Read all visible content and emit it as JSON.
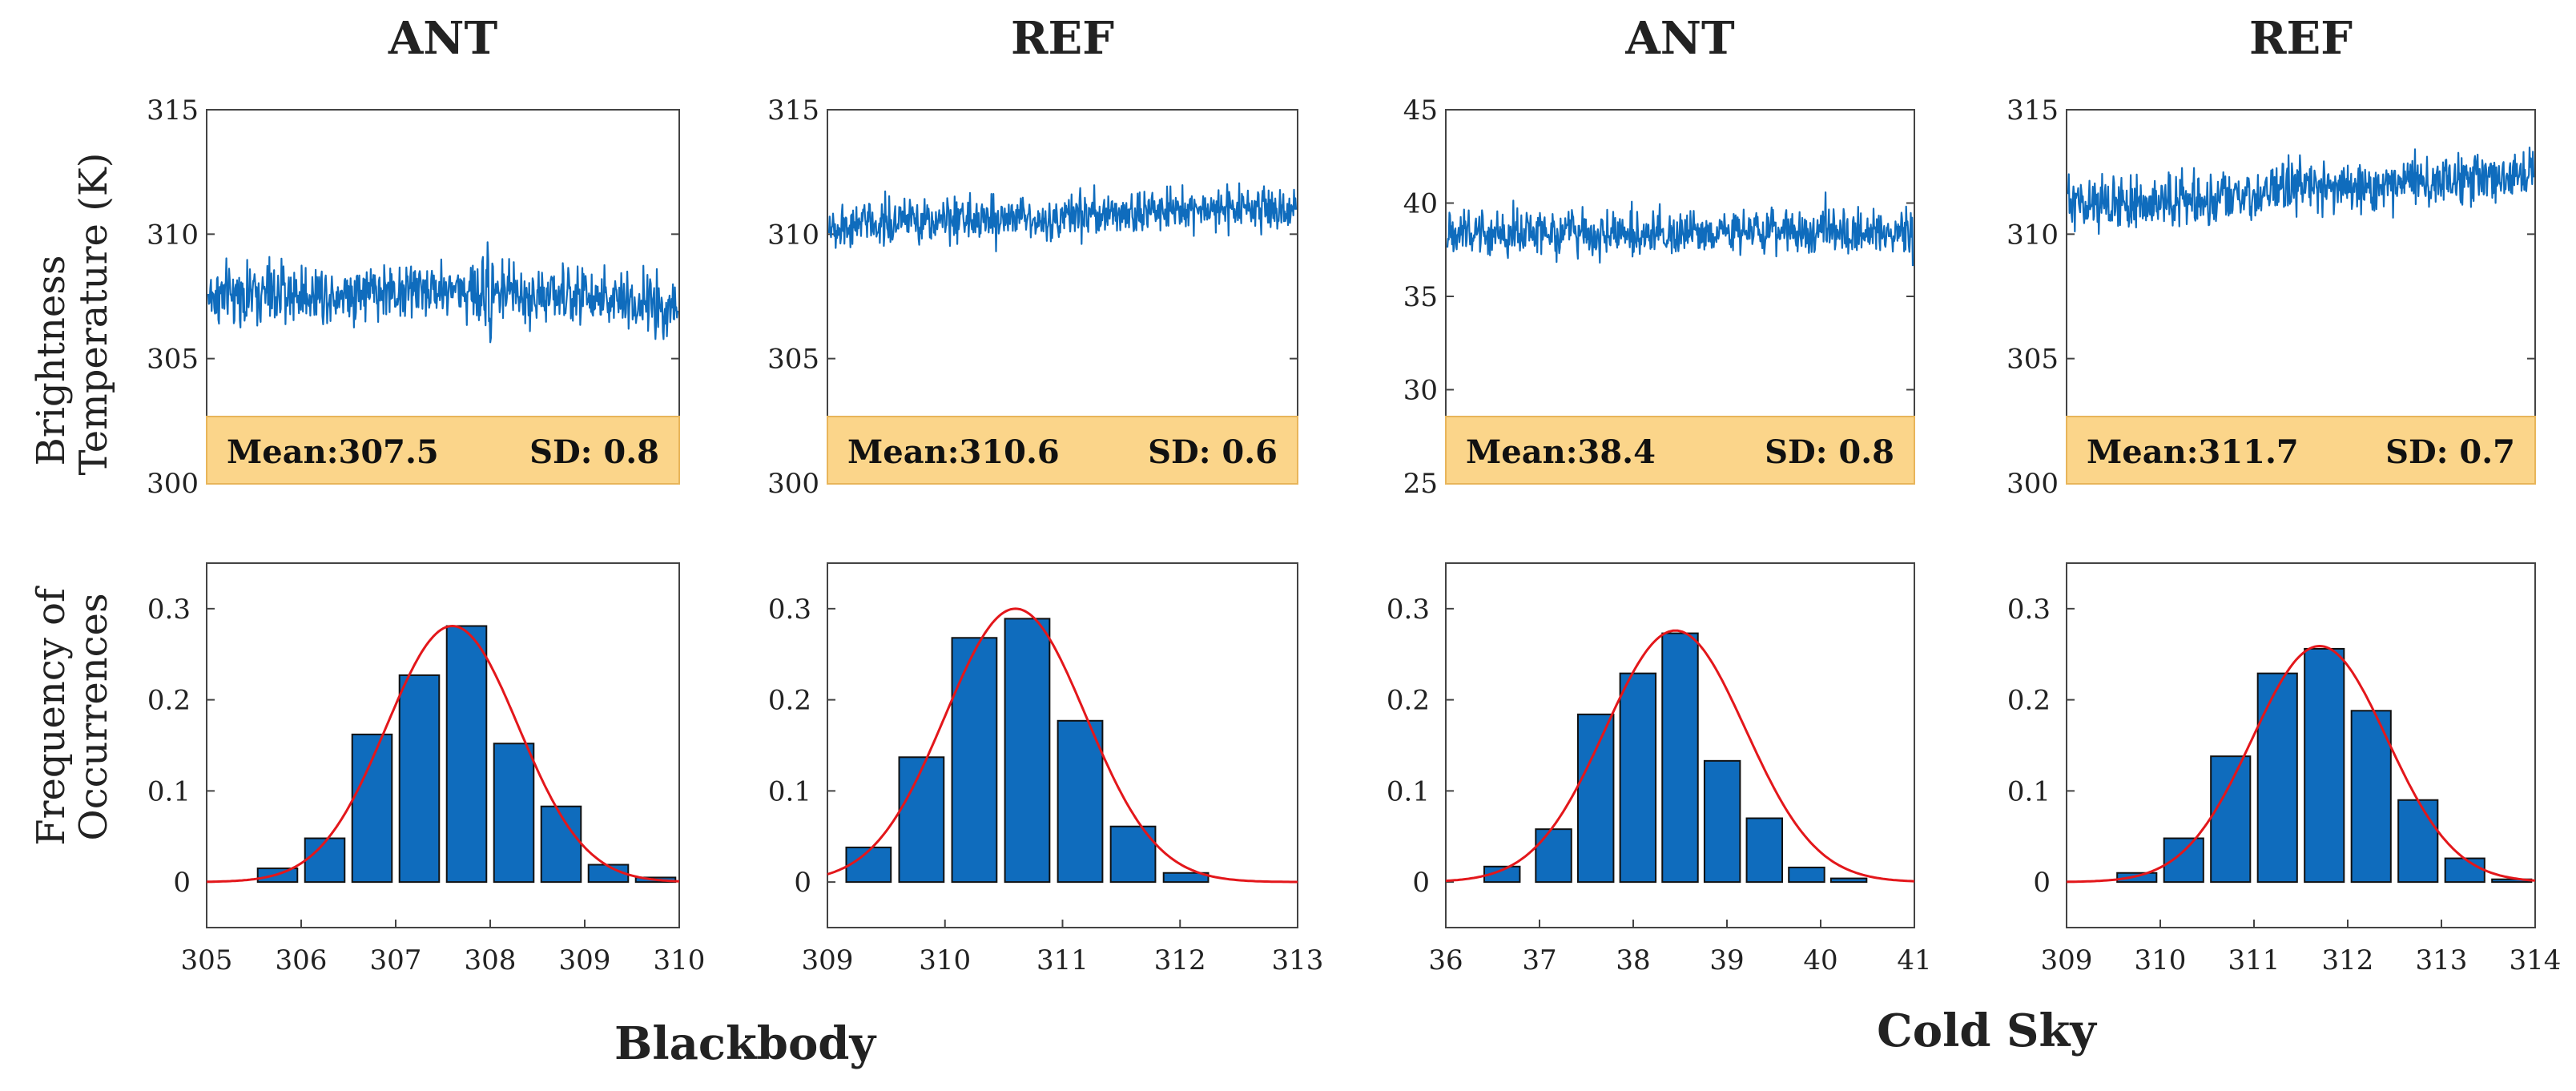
{
  "figure": {
    "group_labels": [
      "Blackbody",
      "Cold Sky"
    ],
    "row_labels": {
      "time_series": [
        "Brightness",
        "Temperature (K)"
      ],
      "histogram": [
        "Frequency of",
        "Occurrences"
      ]
    },
    "colors": {
      "signal": "#0F6CBD",
      "fit": "#E3171B",
      "stat_box": "#FBD58A",
      "stat_border": "#E8B55A"
    }
  },
  "chart_data": [
    {
      "panel": "blackbody-ant",
      "title": "ANT",
      "timeseries": {
        "type": "line",
        "ylim": [
          300,
          315
        ],
        "yticks": [
          "300",
          "305",
          "310",
          "315"
        ],
        "mean": 307.5,
        "sd": 0.8,
        "noise": 0.8,
        "spike": 0.55,
        "drift": [
          0,
          0.15,
          0.3,
          0,
          -0.4
        ]
      },
      "stats": {
        "mean_label": "Mean:307.5",
        "sd_label": "SD: 0.8"
      },
      "histogram": {
        "type": "bar",
        "xlim": [
          305,
          310
        ],
        "xticks": [
          "305",
          "306",
          "307",
          "308",
          "309",
          "310"
        ],
        "ylim": [
          -0.05,
          0.35
        ],
        "yticks": [
          "0",
          "0.1",
          "0.2",
          "0.3"
        ],
        "bin_centers": [
          305.15,
          305.45,
          305.75,
          306.05,
          306.35,
          306.65,
          306.95,
          307.25,
          307.55,
          307.85,
          308.15,
          308.45,
          308.75,
          309.05,
          309.35,
          309.65,
          309.95
        ],
        "bin_centers_note": "",
        "bars": [
          {
            "x": 305.75,
            "y": 0.015
          },
          {
            "x": 306.25,
            "y": 0.048
          },
          {
            "x": 306.75,
            "y": 0.162
          },
          {
            "x": 307.25,
            "y": 0.227
          },
          {
            "x": 307.75,
            "y": 0.281
          },
          {
            "x": 308.25,
            "y": 0.152
          },
          {
            "x": 308.75,
            "y": 0.083
          },
          {
            "x": 309.25,
            "y": 0.019
          },
          {
            "x": 309.75,
            "y": 0.005
          }
        ],
        "bar_width": 0.42,
        "fit": {
          "mean": 307.6,
          "sigma": 0.7,
          "peak": 0.281
        }
      }
    },
    {
      "panel": "blackbody-ref",
      "title": "REF",
      "timeseries": {
        "type": "line",
        "ylim": [
          300,
          315
        ],
        "yticks": [
          "300",
          "305",
          "310",
          "315"
        ],
        "mean": 310.6,
        "sd": 0.6,
        "noise": 0.6,
        "spike": 0,
        "drift": [
          -0.3,
          0.1,
          0,
          0.4,
          0.4
        ]
      },
      "stats": {
        "mean_label": "Mean:310.6",
        "sd_label": "SD: 0.6"
      },
      "histogram": {
        "type": "bar",
        "xlim": [
          309,
          313
        ],
        "xticks": [
          "309",
          "310",
          "311",
          "312",
          "313"
        ],
        "ylim": [
          -0.05,
          0.35
        ],
        "yticks": [
          "0",
          "0.1",
          "0.2",
          "0.3"
        ],
        "bars": [
          {
            "x": 309.35,
            "y": 0.038
          },
          {
            "x": 309.8,
            "y": 0.137
          },
          {
            "x": 310.25,
            "y": 0.268
          },
          {
            "x": 310.7,
            "y": 0.289
          },
          {
            "x": 311.15,
            "y": 0.177
          },
          {
            "x": 311.6,
            "y": 0.061
          },
          {
            "x": 312.05,
            "y": 0.01
          }
        ],
        "bar_width": 0.38,
        "fit": {
          "mean": 310.6,
          "sigma": 0.6,
          "peak": 0.3
        }
      }
    },
    {
      "panel": "cold-sky-ant",
      "title": "ANT",
      "timeseries": {
        "type": "line",
        "ylim": [
          25,
          45
        ],
        "yticks": [
          "25",
          "30",
          "35",
          "40",
          "45"
        ],
        "mean": 38.4,
        "sd": 0.8,
        "noise": 0.8,
        "spike": 0,
        "drift": [
          0,
          0.1,
          0,
          0.1,
          0
        ]
      },
      "stats": {
        "mean_label": "Mean:38.4",
        "sd_label": "SD: 0.8"
      },
      "histogram": {
        "type": "bar",
        "xlim": [
          36,
          41
        ],
        "xticks": [
          "36",
          "37",
          "38",
          "39",
          "40",
          "41"
        ],
        "ylim": [
          -0.05,
          0.35
        ],
        "yticks": [
          "0",
          "0.1",
          "0.2",
          "0.3"
        ],
        "bars": [
          {
            "x": 36.6,
            "y": 0.017
          },
          {
            "x": 37.15,
            "y": 0.058
          },
          {
            "x": 37.6,
            "y": 0.184
          },
          {
            "x": 38.05,
            "y": 0.229
          },
          {
            "x": 38.5,
            "y": 0.273
          },
          {
            "x": 38.95,
            "y": 0.133
          },
          {
            "x": 39.4,
            "y": 0.07
          },
          {
            "x": 39.85,
            "y": 0.016
          },
          {
            "x": 40.3,
            "y": 0.004
          }
        ],
        "bar_width": 0.38,
        "fit": {
          "mean": 38.45,
          "sigma": 0.75,
          "peak": 0.276
        }
      }
    },
    {
      "panel": "cold-sky-ref",
      "title": "REF",
      "timeseries": {
        "type": "line",
        "ylim": [
          300,
          315
        ],
        "yticks": [
          "300",
          "305",
          "310",
          "315"
        ],
        "mean": 311.7,
        "sd": 0.7,
        "noise": 0.7,
        "spike": 0,
        "drift": [
          -0.5,
          -0.3,
          0.2,
          0.4,
          0.7
        ]
      },
      "stats": {
        "mean_label": "Mean:311.7",
        "sd_label": "SD: 0.7"
      },
      "histogram": {
        "type": "bar",
        "xlim": [
          309,
          314
        ],
        "xticks": [
          "309",
          "310",
          "311",
          "312",
          "313",
          "314"
        ],
        "ylim": [
          -0.05,
          0.35
        ],
        "yticks": [
          "0",
          "0.1",
          "0.2",
          "0.3"
        ],
        "bars": [
          {
            "x": 309.75,
            "y": 0.01
          },
          {
            "x": 310.25,
            "y": 0.048
          },
          {
            "x": 310.75,
            "y": 0.138
          },
          {
            "x": 311.25,
            "y": 0.229
          },
          {
            "x": 311.75,
            "y": 0.256
          },
          {
            "x": 312.25,
            "y": 0.188
          },
          {
            "x": 312.75,
            "y": 0.09
          },
          {
            "x": 313.25,
            "y": 0.026
          },
          {
            "x": 313.75,
            "y": 0.003
          }
        ],
        "bar_width": 0.42,
        "fit": {
          "mean": 311.7,
          "sigma": 0.72,
          "peak": 0.259
        }
      }
    }
  ]
}
